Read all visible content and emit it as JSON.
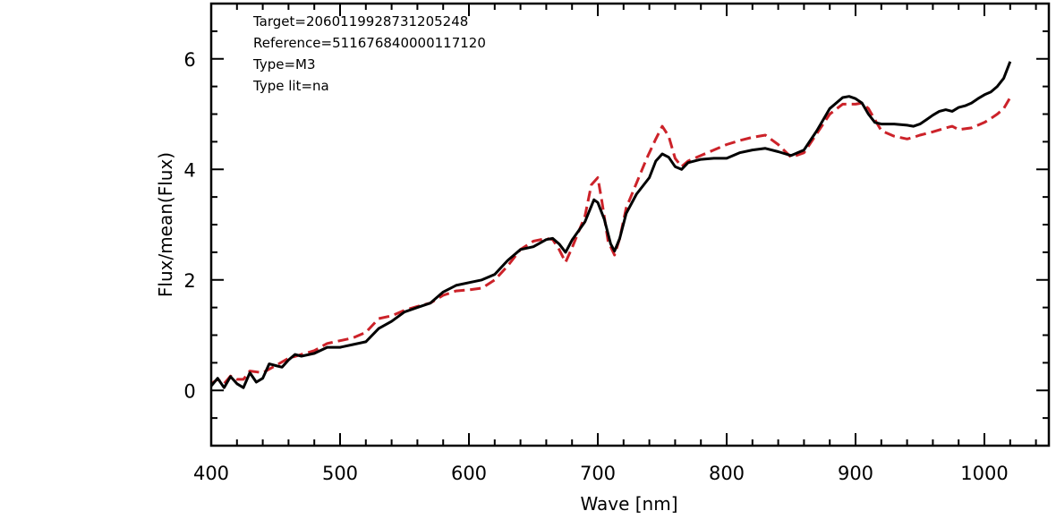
{
  "chart_data": {
    "type": "line",
    "xlabel": "Wave [nm]",
    "ylabel": "Flux/mean(Flux)",
    "xlim": [
      400,
      1050
    ],
    "ylim": [
      -1,
      7
    ],
    "x_ticks": [
      400,
      500,
      600,
      700,
      800,
      900,
      1000
    ],
    "y_ticks": [
      0,
      2,
      4,
      6
    ],
    "grid": false,
    "annotations": [
      "Target=2060119928731205248",
      "Reference=511676840000117120",
      "Type=M3",
      "Type lit=na"
    ],
    "series": [
      {
        "color": "#000000",
        "style": "solid",
        "points": [
          [
            400,
            0.08
          ],
          [
            405,
            0.22
          ],
          [
            410,
            0.05
          ],
          [
            415,
            0.25
          ],
          [
            420,
            0.12
          ],
          [
            425,
            0.05
          ],
          [
            430,
            0.32
          ],
          [
            435,
            0.15
          ],
          [
            440,
            0.22
          ],
          [
            445,
            0.48
          ],
          [
            450,
            0.45
          ],
          [
            455,
            0.42
          ],
          [
            460,
            0.55
          ],
          [
            465,
            0.65
          ],
          [
            470,
            0.62
          ],
          [
            480,
            0.67
          ],
          [
            490,
            0.78
          ],
          [
            500,
            0.78
          ],
          [
            510,
            0.83
          ],
          [
            520,
            0.88
          ],
          [
            530,
            1.12
          ],
          [
            540,
            1.25
          ],
          [
            550,
            1.42
          ],
          [
            560,
            1.5
          ],
          [
            570,
            1.58
          ],
          [
            580,
            1.78
          ],
          [
            590,
            1.9
          ],
          [
            600,
            1.95
          ],
          [
            610,
            2.0
          ],
          [
            620,
            2.1
          ],
          [
            630,
            2.35
          ],
          [
            640,
            2.55
          ],
          [
            650,
            2.6
          ],
          [
            660,
            2.73
          ],
          [
            665,
            2.75
          ],
          [
            670,
            2.65
          ],
          [
            675,
            2.5
          ],
          [
            680,
            2.72
          ],
          [
            690,
            3.05
          ],
          [
            697,
            3.45
          ],
          [
            700,
            3.4
          ],
          [
            705,
            3.1
          ],
          [
            710,
            2.65
          ],
          [
            713,
            2.52
          ],
          [
            717,
            2.75
          ],
          [
            722,
            3.2
          ],
          [
            730,
            3.55
          ],
          [
            740,
            3.85
          ],
          [
            745,
            4.15
          ],
          [
            750,
            4.28
          ],
          [
            755,
            4.22
          ],
          [
            760,
            4.05
          ],
          [
            765,
            4.0
          ],
          [
            770,
            4.12
          ],
          [
            780,
            4.18
          ],
          [
            790,
            4.2
          ],
          [
            800,
            4.2
          ],
          [
            810,
            4.3
          ],
          [
            820,
            4.35
          ],
          [
            830,
            4.38
          ],
          [
            840,
            4.32
          ],
          [
            850,
            4.25
          ],
          [
            860,
            4.35
          ],
          [
            870,
            4.7
          ],
          [
            880,
            5.1
          ],
          [
            890,
            5.3
          ],
          [
            895,
            5.32
          ],
          [
            900,
            5.28
          ],
          [
            905,
            5.2
          ],
          [
            910,
            5.0
          ],
          [
            915,
            4.85
          ],
          [
            920,
            4.82
          ],
          [
            930,
            4.82
          ],
          [
            940,
            4.8
          ],
          [
            945,
            4.78
          ],
          [
            950,
            4.82
          ],
          [
            955,
            4.9
          ],
          [
            960,
            4.98
          ],
          [
            965,
            5.05
          ],
          [
            970,
            5.08
          ],
          [
            975,
            5.05
          ],
          [
            980,
            5.12
          ],
          [
            985,
            5.15
          ],
          [
            990,
            5.2
          ],
          [
            995,
            5.28
          ],
          [
            1000,
            5.35
          ],
          [
            1005,
            5.4
          ],
          [
            1010,
            5.5
          ],
          [
            1015,
            5.65
          ],
          [
            1020,
            5.95
          ]
        ]
      },
      {
        "color": "#cc2229",
        "style": "dashed",
        "points": [
          [
            400,
            0.12
          ],
          [
            405,
            0.2
          ],
          [
            410,
            0.12
          ],
          [
            415,
            0.26
          ],
          [
            420,
            0.2
          ],
          [
            425,
            0.2
          ],
          [
            430,
            0.35
          ],
          [
            440,
            0.32
          ],
          [
            450,
            0.45
          ],
          [
            460,
            0.58
          ],
          [
            470,
            0.65
          ],
          [
            480,
            0.72
          ],
          [
            490,
            0.85
          ],
          [
            500,
            0.9
          ],
          [
            510,
            0.95
          ],
          [
            520,
            1.05
          ],
          [
            530,
            1.3
          ],
          [
            540,
            1.35
          ],
          [
            550,
            1.45
          ],
          [
            560,
            1.52
          ],
          [
            570,
            1.58
          ],
          [
            580,
            1.72
          ],
          [
            590,
            1.8
          ],
          [
            600,
            1.82
          ],
          [
            610,
            1.85
          ],
          [
            620,
            2.0
          ],
          [
            630,
            2.25
          ],
          [
            640,
            2.55
          ],
          [
            650,
            2.7
          ],
          [
            660,
            2.75
          ],
          [
            665,
            2.73
          ],
          [
            670,
            2.55
          ],
          [
            675,
            2.32
          ],
          [
            680,
            2.58
          ],
          [
            690,
            3.15
          ],
          [
            695,
            3.72
          ],
          [
            700,
            3.85
          ],
          [
            703,
            3.45
          ],
          [
            708,
            2.7
          ],
          [
            713,
            2.45
          ],
          [
            717,
            2.75
          ],
          [
            722,
            3.3
          ],
          [
            730,
            3.75
          ],
          [
            738,
            4.2
          ],
          [
            745,
            4.55
          ],
          [
            750,
            4.78
          ],
          [
            755,
            4.6
          ],
          [
            760,
            4.2
          ],
          [
            765,
            4.05
          ],
          [
            770,
            4.15
          ],
          [
            780,
            4.25
          ],
          [
            790,
            4.35
          ],
          [
            800,
            4.45
          ],
          [
            810,
            4.52
          ],
          [
            820,
            4.58
          ],
          [
            830,
            4.62
          ],
          [
            840,
            4.45
          ],
          [
            850,
            4.22
          ],
          [
            860,
            4.3
          ],
          [
            870,
            4.65
          ],
          [
            880,
            5.0
          ],
          [
            890,
            5.18
          ],
          [
            900,
            5.18
          ],
          [
            905,
            5.2
          ],
          [
            910,
            5.1
          ],
          [
            915,
            4.9
          ],
          [
            920,
            4.7
          ],
          [
            930,
            4.6
          ],
          [
            940,
            4.55
          ],
          [
            945,
            4.58
          ],
          [
            950,
            4.62
          ],
          [
            960,
            4.68
          ],
          [
            970,
            4.75
          ],
          [
            975,
            4.78
          ],
          [
            980,
            4.72
          ],
          [
            990,
            4.75
          ],
          [
            1000,
            4.85
          ],
          [
            1005,
            4.92
          ],
          [
            1010,
            5.0
          ],
          [
            1015,
            5.1
          ],
          [
            1020,
            5.3
          ]
        ]
      }
    ]
  }
}
